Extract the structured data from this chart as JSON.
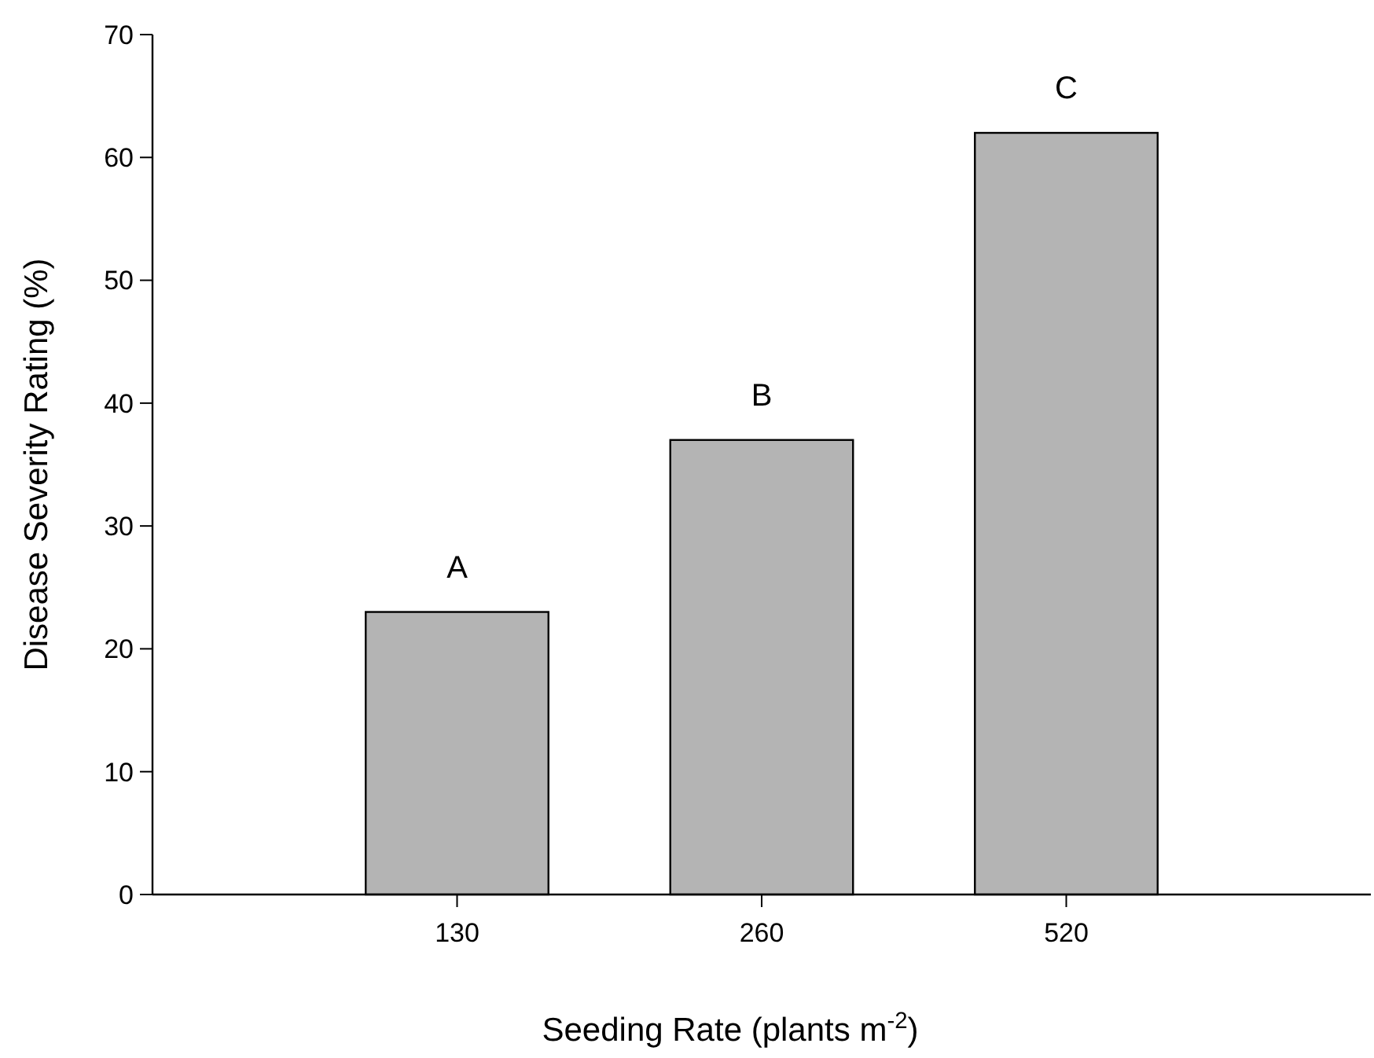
{
  "chart_data": {
    "type": "bar",
    "xlabel": "Seeding Rate (plants m$^{-2}$)",
    "ylabel": "Disease Severity Rating (%)",
    "categories": [
      "130",
      "260",
      "520"
    ],
    "values": [
      23,
      37,
      62
    ],
    "color": "#b4b4b4",
    "ylim": [
      0,
      70
    ],
    "yticks": [
      0,
      10,
      20,
      30,
      40,
      50,
      60,
      70
    ],
    "grid": false,
    "annotations": [
      {
        "text": "A",
        "x": "130",
        "y": 23
      },
      {
        "text": "B",
        "x": "260",
        "y": 37
      },
      {
        "text": "C",
        "x": "520",
        "y": 62
      }
    ]
  }
}
